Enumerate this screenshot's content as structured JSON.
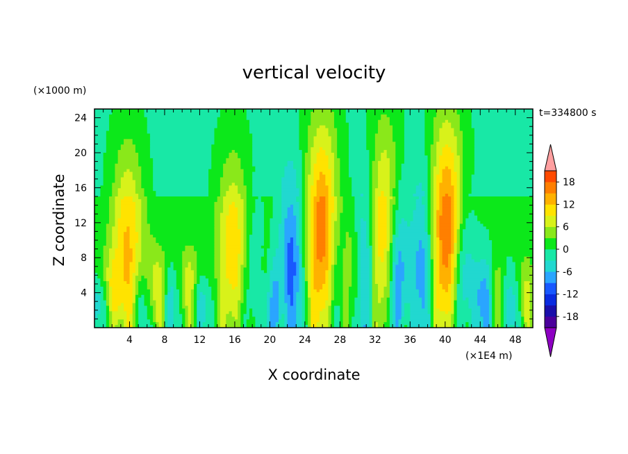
{
  "chart_data": {
    "type": "heatmap",
    "title": "vertical velocity",
    "xlabel": "X coordinate",
    "ylabel": "Z coordinate",
    "x_unit": "(×1E4 m)",
    "y_unit": "(×1000 m)",
    "time_label": "t=334800 s",
    "xlim": [
      0,
      50
    ],
    "ylim": [
      0,
      25
    ],
    "x_ticks": [
      4,
      8,
      12,
      16,
      20,
      24,
      28,
      32,
      36,
      40,
      44,
      48
    ],
    "y_ticks": [
      4,
      8,
      12,
      16,
      20,
      24
    ],
    "colorbar": {
      "levels": [
        -21,
        -18,
        -15,
        -12,
        -9,
        -6,
        -3,
        0,
        3,
        6,
        9,
        12,
        15,
        18,
        21
      ],
      "tick_labels": [
        "18",
        "12",
        "6",
        "0",
        "-6",
        "-12",
        "-18"
      ],
      "tick_values": [
        18,
        12,
        6,
        0,
        -6,
        -12,
        -18
      ],
      "colors": [
        "#8d00c2",
        "#4b009b",
        "#1a0faa",
        "#0a2be0",
        "#1858ff",
        "#2aa5ff",
        "#21d8d0",
        "#18e8a6",
        "#0ce81a",
        "#8ae81a",
        "#d8f21a",
        "#ffe300",
        "#ffb100",
        "#ff7f00",
        "#ff4a00",
        "#e70f0f",
        "#ff9fa0"
      ],
      "extend": "both"
    },
    "updrafts": [
      {
        "x": 1.8,
        "strength": 8,
        "height": 8
      },
      {
        "x": 3.8,
        "strength": 12,
        "height": 20
      },
      {
        "x": 7.0,
        "strength": 8,
        "height": 9
      },
      {
        "x": 10.8,
        "strength": 8,
        "height": 9
      },
      {
        "x": 15.8,
        "strength": 11,
        "height": 19
      },
      {
        "x": 19.5,
        "strength": 10,
        "height": 10
      },
      {
        "x": 26.0,
        "strength": 17,
        "height": 23
      },
      {
        "x": 29.2,
        "strength": 7,
        "height": 14
      },
      {
        "x": 33.2,
        "strength": 14,
        "height": 22
      },
      {
        "x": 40.2,
        "strength": 18,
        "height": 23
      },
      {
        "x": 46.0,
        "strength": 5,
        "height": 8
      },
      {
        "x": 49.0,
        "strength": 6,
        "height": 8
      }
    ],
    "downdrafts": [
      {
        "x": 0.7,
        "strength": 10,
        "height": 6
      },
      {
        "x": 5.5,
        "strength": 7,
        "height": 7
      },
      {
        "x": 8.8,
        "strength": 7,
        "height": 7
      },
      {
        "x": 12.0,
        "strength": 8,
        "height": 6
      },
      {
        "x": 18.3,
        "strength": 9,
        "height": 12
      },
      {
        "x": 20.2,
        "strength": 12,
        "height": 9
      },
      {
        "x": 22.5,
        "strength": 11,
        "height": 17
      },
      {
        "x": 27.8,
        "strength": 8,
        "height": 15
      },
      {
        "x": 30.8,
        "strength": 10,
        "height": 17
      },
      {
        "x": 34.5,
        "strength": 14,
        "height": 16
      },
      {
        "x": 37.5,
        "strength": 9,
        "height": 17
      },
      {
        "x": 42.0,
        "strength": 10,
        "height": 14
      },
      {
        "x": 44.5,
        "strength": 9,
        "height": 8
      },
      {
        "x": 47.5,
        "strength": 8,
        "height": 7
      }
    ]
  }
}
